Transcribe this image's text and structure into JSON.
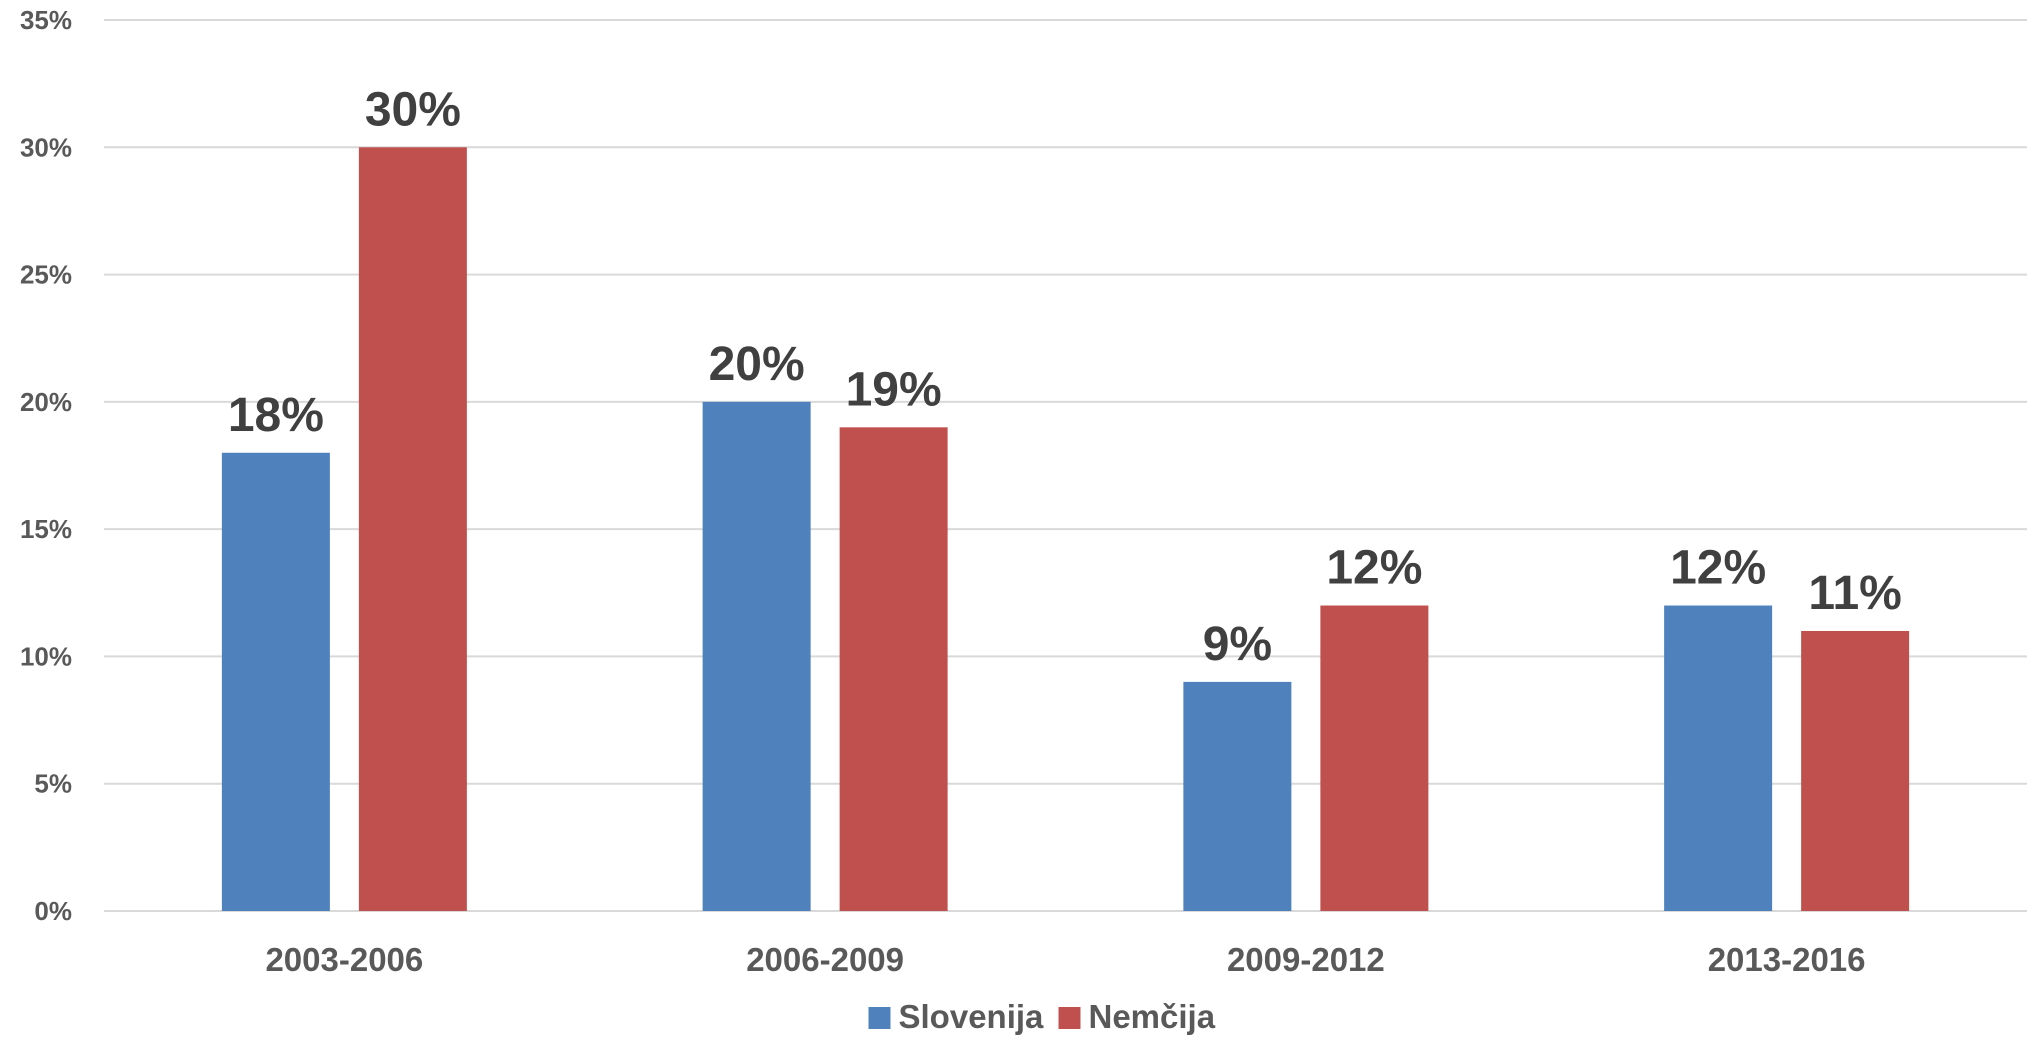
{
  "chart_data": {
    "type": "bar",
    "categories": [
      "2003-2006",
      "2006-2009",
      "2009-2012",
      "2013-2016"
    ],
    "series": [
      {
        "name": "Slovenija",
        "color": "#4F81BD",
        "values": [
          18,
          20,
          9,
          12
        ],
        "labels": [
          "18%",
          "20%",
          "9%",
          "12%"
        ]
      },
      {
        "name": "Nemčija",
        "color": "#C0504D",
        "values": [
          30,
          19,
          12,
          11
        ],
        "labels": [
          "30%",
          "19%",
          "12%",
          "11%"
        ]
      }
    ],
    "ylim": [
      0,
      35
    ],
    "yticks": [
      0,
      5,
      10,
      15,
      20,
      25,
      30,
      35
    ],
    "ytick_labels": [
      "0%",
      "5%",
      "10%",
      "15%",
      "20%",
      "25%",
      "30%",
      "35%"
    ],
    "grid": true,
    "legend_position": "bottom-center",
    "title": "",
    "xlabel": "",
    "ylabel": ""
  }
}
